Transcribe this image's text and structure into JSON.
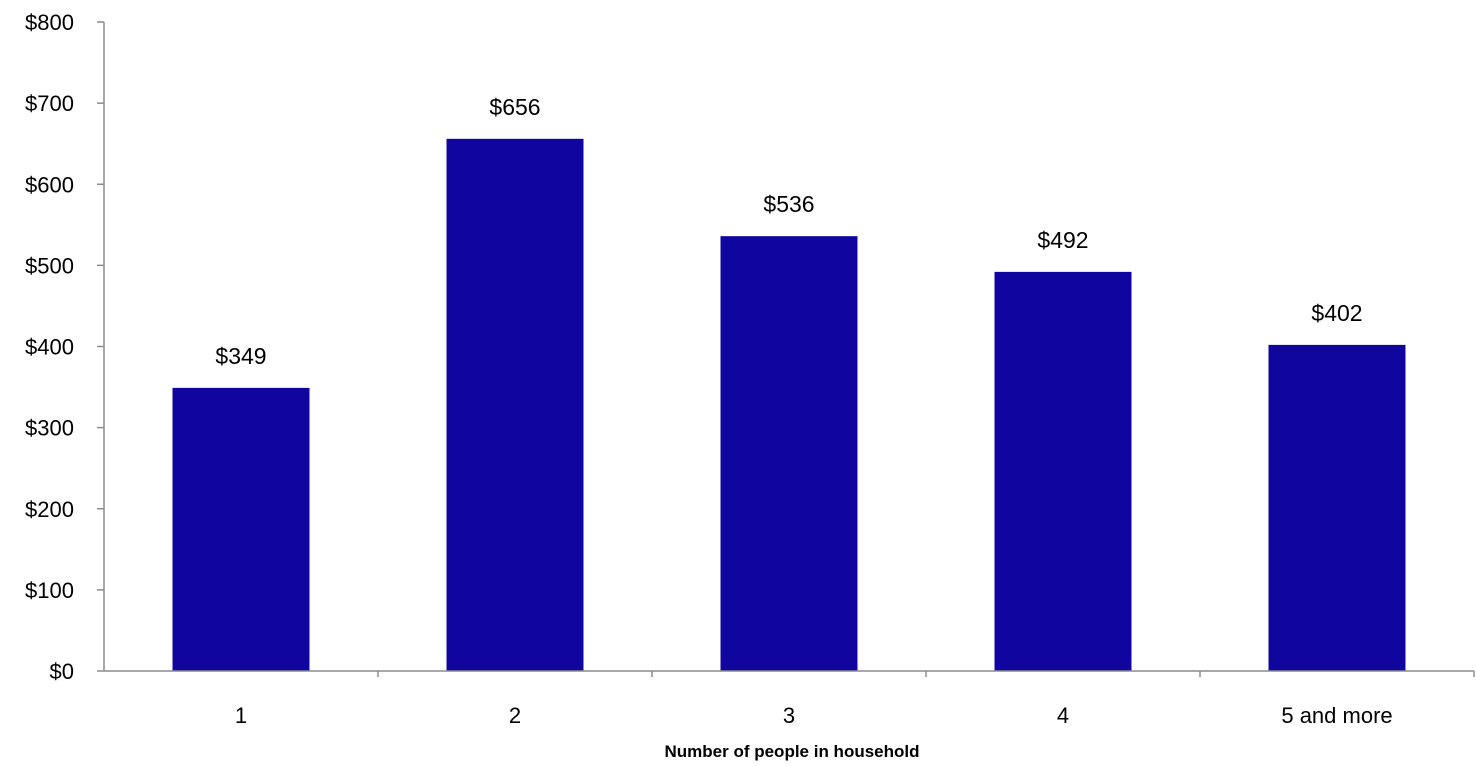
{
  "chart_data": {
    "type": "bar",
    "categories": [
      "1",
      "2",
      "3",
      "4",
      "5 and more"
    ],
    "values": [
      349,
      656,
      536,
      492,
      402
    ],
    "value_labels": [
      "$349",
      "$656",
      "$536",
      "$492",
      "$402"
    ],
    "title": "",
    "xlabel": "Number of people in household",
    "ylabel": "",
    "ylim": [
      0,
      800
    ],
    "yticks": [
      0,
      100,
      200,
      300,
      400,
      500,
      600,
      700,
      800
    ],
    "ytick_labels": [
      "$0",
      "$100",
      "$200",
      "$300",
      "$400",
      "$500",
      "$600",
      "$700",
      "$800"
    ],
    "grid": false,
    "legend": "none",
    "colors": {
      "bar": "#10069f",
      "axis": "#8c8c8c"
    }
  }
}
